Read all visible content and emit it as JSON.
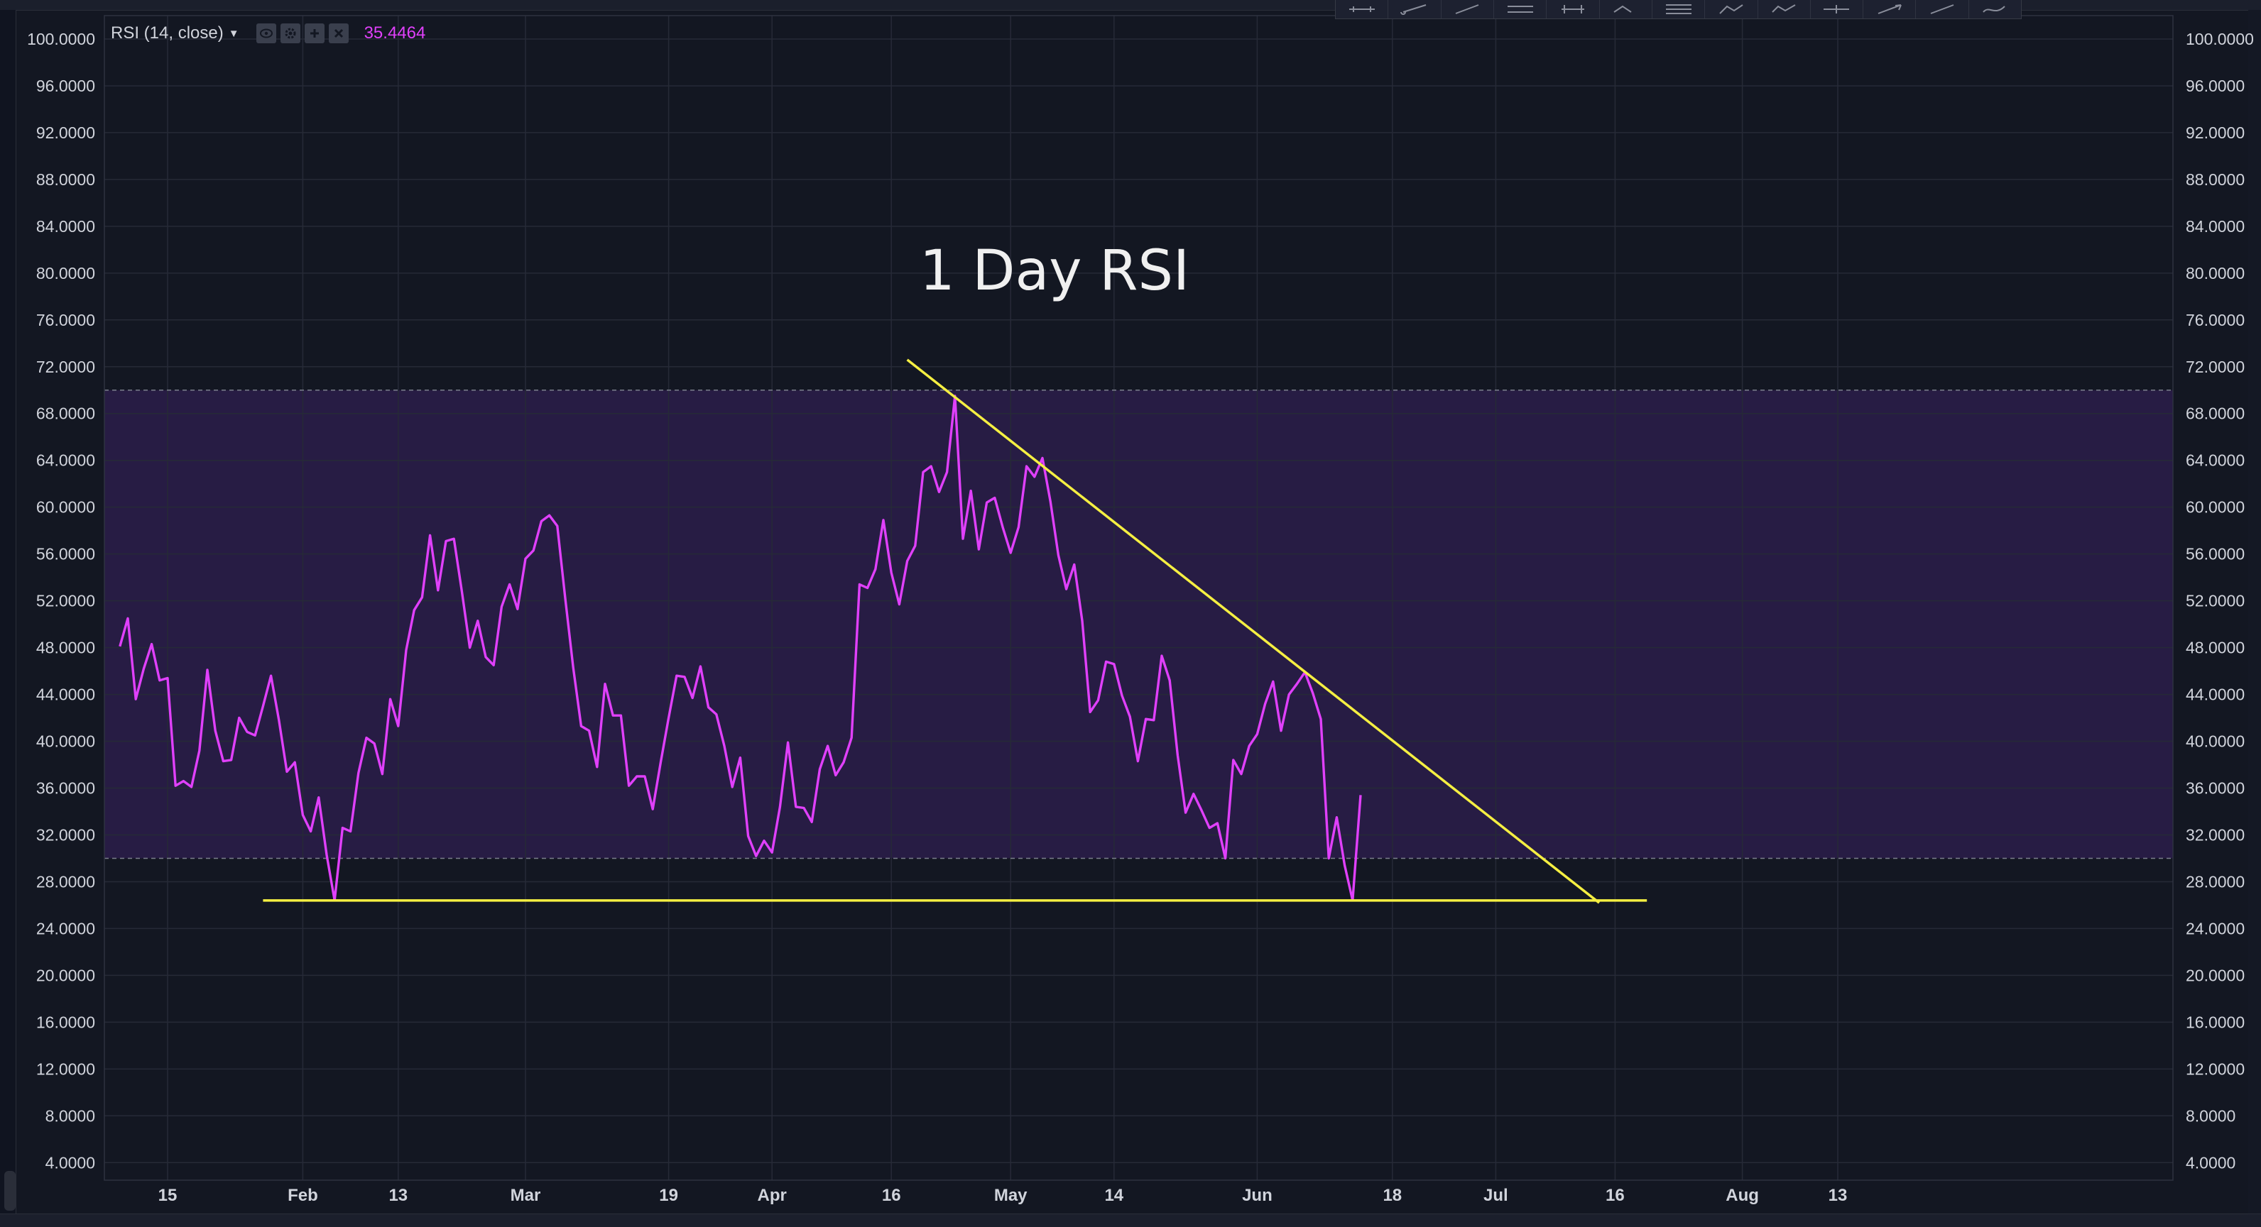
{
  "indicator": {
    "name": "RSI (14, close)",
    "value": "35.4464"
  },
  "annotation": {
    "text": "1 Day RSI"
  },
  "colors": {
    "background": "#131722",
    "rsi_line": "#e040fb",
    "band_fill": "#2a1d48",
    "trendline": "#f5ef42",
    "axis_text": "#d1d4dc"
  },
  "icons": {
    "legend_buttons": [
      "eye-icon",
      "settings-icon",
      "plus-icon",
      "close-icon"
    ],
    "toolbar_tools": [
      "horizontal-line-icon",
      "ray-icon",
      "line-icon",
      "parallel-channel-icon",
      "pitchfork-icon",
      "pitchfork-icon",
      "fib-icon",
      "path-icon",
      "polyline-icon",
      "info-line-icon",
      "arrow-icon",
      "arrow-icon",
      "brush-icon"
    ]
  },
  "chart_data": {
    "type": "line",
    "title": "1 Day RSI",
    "indicator": "RSI (14, close)",
    "ylim": [
      2.5,
      102
    ],
    "y_ticks": [
      "4.0000",
      "8.0000",
      "12.0000",
      "16.0000",
      "20.0000",
      "24.0000",
      "28.0000",
      "32.0000",
      "36.0000",
      "40.0000",
      "44.0000",
      "48.0000",
      "52.0000",
      "56.0000",
      "60.0000",
      "64.0000",
      "68.0000",
      "72.0000",
      "76.0000",
      "80.0000",
      "84.0000",
      "88.0000",
      "92.0000",
      "96.0000",
      "100.0000"
    ],
    "x_ticks": [
      {
        "label": "15",
        "date": "2018-01-15"
      },
      {
        "label": "Feb",
        "date": "2018-02-01"
      },
      {
        "label": "13",
        "date": "2018-02-13"
      },
      {
        "label": "Mar",
        "date": "2018-03-01"
      },
      {
        "label": "19",
        "date": "2018-03-19"
      },
      {
        "label": "Apr",
        "date": "2018-04-01"
      },
      {
        "label": "16",
        "date": "2018-04-16"
      },
      {
        "label": "May",
        "date": "2018-05-01"
      },
      {
        "label": "14",
        "date": "2018-05-14"
      },
      {
        "label": "Jun",
        "date": "2018-06-01"
      },
      {
        "label": "18",
        "date": "2018-06-18"
      },
      {
        "label": "Jul",
        "date": "2018-07-01"
      },
      {
        "label": "16",
        "date": "2018-07-16"
      },
      {
        "label": "Aug",
        "date": "2018-08-01"
      },
      {
        "label": "13",
        "date": "2018-08-13"
      }
    ],
    "bands": {
      "upper": 70,
      "lower": 30
    },
    "grid": true,
    "series": [
      {
        "start_date": "2018-01-09",
        "step_days": 1,
        "values": [
          48.1,
          50.5,
          43.6,
          46.2,
          48.3,
          45.2,
          45.4,
          36.2,
          36.6,
          36.1,
          39.2,
          46.1,
          40.9,
          38.3,
          38.4,
          42.0,
          40.8,
          40.5,
          43.0,
          45.6,
          41.8,
          37.4,
          38.2,
          33.7,
          32.3,
          35.2,
          30.3,
          26.4,
          32.6,
          32.3,
          37.3,
          40.3,
          39.8,
          37.2,
          43.6,
          41.3,
          47.8,
          51.2,
          52.3,
          57.6,
          52.9,
          57.1,
          57.3,
          52.8,
          48.0,
          50.3,
          47.2,
          46.5,
          51.5,
          53.4,
          51.3,
          55.6,
          56.3,
          58.8,
          59.3,
          58.4,
          52.2,
          46.3,
          41.3,
          40.9,
          37.8,
          44.9,
          42.2,
          42.2,
          36.2,
          37.0,
          37.0,
          34.2,
          38.2,
          42.0,
          45.6,
          45.5,
          43.7,
          46.4,
          42.9,
          42.3,
          39.6,
          36.1,
          38.6,
          31.9,
          30.2,
          31.5,
          30.5,
          34.4,
          39.9,
          34.4,
          34.3,
          33.1,
          37.6,
          39.6,
          37.1,
          38.2,
          40.3,
          53.4,
          53.1,
          54.7,
          58.9,
          54.4,
          51.7,
          55.4,
          56.7,
          63.0,
          63.5,
          61.3,
          63.0,
          69.5,
          57.3,
          61.4,
          56.4,
          60.4,
          60.8,
          58.3,
          56.1,
          58.3,
          63.5,
          62.6,
          64.2,
          60.5,
          55.9,
          53.0,
          55.1,
          50.3,
          42.5,
          43.5,
          46.8,
          46.6,
          43.9,
          42.1,
          38.3,
          41.9,
          41.8,
          47.3,
          45.2,
          38.8,
          33.9,
          35.5,
          34.1,
          32.6,
          33.0,
          30.0,
          38.4,
          37.2,
          39.6,
          40.6,
          43.2,
          45.1,
          40.9,
          44.0,
          44.9,
          45.9,
          44.1,
          41.9,
          30.0,
          33.5,
          29.4,
          26.4,
          35.4
        ]
      }
    ],
    "trendlines": [
      {
        "from": {
          "date": "2018-04-18",
          "value": 72.6
        },
        "to": {
          "date": "2018-07-14",
          "value": 26.2
        }
      },
      {
        "from": {
          "date": "2018-01-27",
          "value": 26.4
        },
        "to": {
          "date": "2018-07-20",
          "value": 26.4
        }
      }
    ]
  }
}
